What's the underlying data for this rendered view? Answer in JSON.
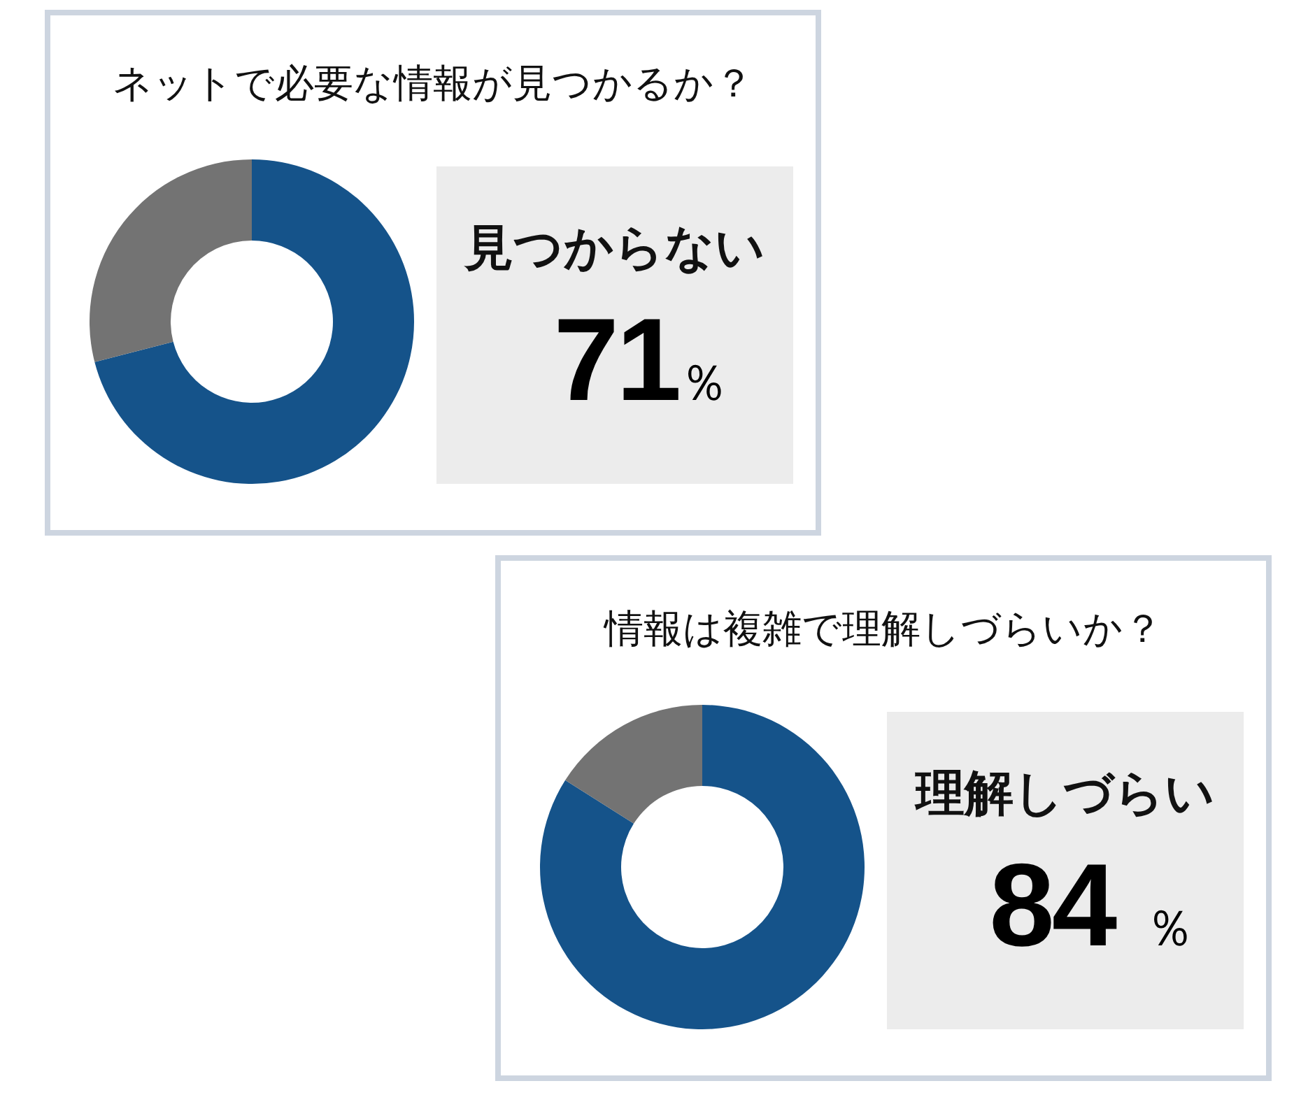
{
  "chart_data": [
    {
      "type": "donut",
      "title": "ネットで必要な情報が見つかるか？",
      "categories": [
        null,
        null
      ],
      "values": [
        71,
        29
      ],
      "colors": [
        "#15538a",
        "#737373"
      ],
      "annotations": [
        "見つからない",
        "71％"
      ]
    },
    {
      "type": "donut",
      "title": "情報は複雑で理解しづらいか？",
      "categories": [
        null,
        null
      ],
      "values": [
        84,
        16
      ],
      "colors": [
        "#15538a",
        "#737373"
      ],
      "annotations": [
        "理解しづらい",
        "84 ％"
      ]
    }
  ]
}
